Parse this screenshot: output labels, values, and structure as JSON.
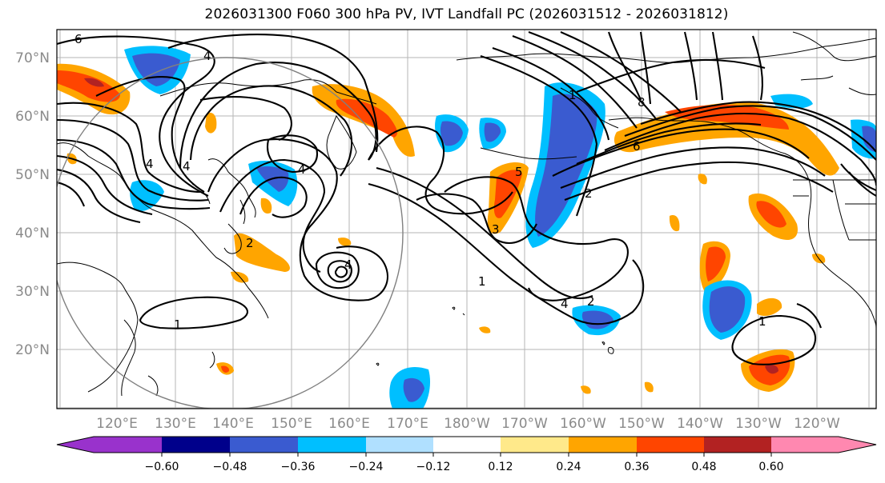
{
  "figure": {
    "title": "2026031300 F060 300 hPa PV, IVT Landfall PC (2026031512 - 2026031812)"
  },
  "map": {
    "lat_labels": [
      "70°N",
      "60°N",
      "50°N",
      "40°N",
      "30°N",
      "20°N"
    ],
    "lon_labels": [
      "120°E",
      "130°E",
      "140°E",
      "150°E",
      "160°E",
      "170°E",
      "180°W",
      "170°W",
      "160°W",
      "150°W",
      "140°W",
      "130°W",
      "120°W"
    ],
    "contour_labels": [
      "4",
      "4",
      "4",
      "4",
      "4",
      "2",
      "1",
      "1",
      "1",
      "2",
      "4",
      "8",
      "6",
      "2",
      "3",
      "1",
      "6",
      "5"
    ]
  },
  "colorbar": {
    "tick_labels": [
      "−0.60",
      "−0.48",
      "−0.36",
      "−0.24",
      "−0.12",
      "0.12",
      "0.24",
      "0.36",
      "0.48",
      "0.60"
    ],
    "colors": [
      "#9932cc",
      "#00008b",
      "#3a5bd0",
      "#00bfff",
      "#b0e0ff",
      "#ffffff",
      "#ffe98a",
      "#ffa500",
      "#ff4500",
      "#b22222",
      "#ff88b0"
    ]
  }
}
